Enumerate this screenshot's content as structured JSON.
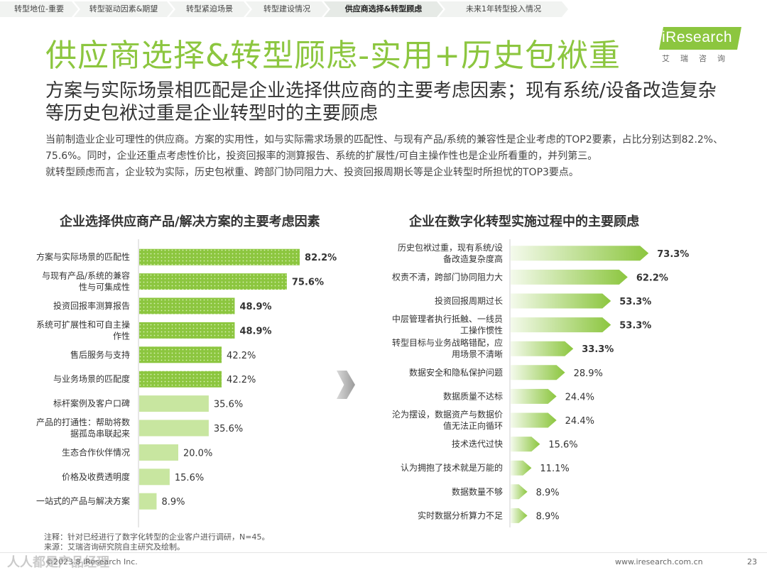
{
  "nav": {
    "items": [
      "转型地位-重要",
      "转型驱动因素&期望",
      "转型紧迫场景",
      "转型建设情况",
      "供应商选择&转型顾虑",
      "未来1年转型投入情况"
    ],
    "active_index": 4
  },
  "logo": {
    "text": "iResearch",
    "sub": "艾瑞咨询"
  },
  "title": "供应商选择&转型顾虑-实用+历史包袱重",
  "subtitle": "方案与实际场景相匹配是企业选择供应商的主要考虑因素；现有系统/设备改造复杂等历史包袱过重是企业转型时的主要顾虑",
  "description": [
    "当前制造业企业可理性的供应商。方案的实用性，如与实际需求场景的匹配性、与现有产品/系统的兼容性是企业考虑的TOP2要素，占比分别达到82.2%、75.6%。同时，企业还重点考虑性价比，投资回报率的测算报告、系统的扩展性/可自主操作性也是企业所看重的，并列第三。",
    "就转型顾虑而言，企业较为实际，历史包袱重、跨部门协同阻力大、投资回报周期长等是企业转型时所担忧的TOP3要点。"
  ],
  "colors": {
    "accent": "#8cc63f",
    "light": "#c8e6a0",
    "text": "#333333"
  },
  "chart_data": [
    {
      "type": "bar",
      "orientation": "horizontal",
      "title": "企业选择供应商产品/解决方案的主要考虑因素",
      "categories": [
        "方案与实际场景的匹配性",
        "与现有产品/系统的兼容性与可集成性",
        "投资回报率测算报告",
        "系统可扩展性和可自主操作性",
        "售后服务与支持",
        "与业务场景的匹配度",
        "标杆案例及客户口碑",
        "产品的打通性：帮助将数据孤岛串联起来",
        "生态合作伙伴情况",
        "价格及收费透明度",
        "一站式的产品与解决方案"
      ],
      "category_lines": [
        [
          "方案与实际场景的匹配性"
        ],
        [
          "与现有产品/系统的兼容",
          "性与可集成性"
        ],
        [
          "投资回报率测算报告"
        ],
        [
          "系统可扩展性和可自主操",
          "作性"
        ],
        [
          "售后服务与支持"
        ],
        [
          "与业务场景的匹配度"
        ],
        [
          "标杆案例及客户口碑"
        ],
        [
          "产品的打通性：帮助将数",
          "据孤岛串联起来"
        ],
        [
          "生态合作伙伴情况"
        ],
        [
          "价格及收费透明度"
        ],
        [
          "一站式的产品与解决方案"
        ]
      ],
      "values": [
        82.2,
        75.6,
        48.9,
        48.9,
        42.2,
        42.2,
        35.6,
        35.6,
        20.0,
        15.6,
        8.9
      ],
      "labels": [
        "82.2%",
        "75.6%",
        "48.9%",
        "48.9%",
        "42.2%",
        "42.2%",
        "35.6%",
        "35.6%",
        "20.0%",
        "15.6%",
        "8.9%"
      ],
      "unit": "%"
    },
    {
      "type": "bar",
      "orientation": "horizontal",
      "title": "企业在数字化转型实施过程中的主要顾虑",
      "categories": [
        "历史包袱过重，现有系统/设备改造复杂度高",
        "权责不清，跨部门协同阻力大",
        "投资回报周期过长",
        "中层管理者执行抵触、一线员工操作惯性",
        "转型目标与业务战略错配，应用场景不清晰",
        "数据安全和隐私保护问题",
        "数据质量不达标",
        "沦为摆设，数据资产与数据价值无法正向循环",
        "技术迭代过快",
        "认为拥抱了技术就是万能的",
        "数据数量不够",
        "实时数据分析算力不足"
      ],
      "category_lines": [
        [
          "历史包袱过重，现有系统/设",
          "备改造复杂度高"
        ],
        [
          "权责不清，跨部门协同阻力大"
        ],
        [
          "投资回报周期过长"
        ],
        [
          "中层管理者执行抵触、一线员",
          "工操作惯性"
        ],
        [
          "转型目标与业务战略错配，应",
          "用场景不清晰"
        ],
        [
          "数据安全和隐私保护问题"
        ],
        [
          "数据质量不达标"
        ],
        [
          "沦为摆设，数据资产与数据价",
          "值无法正向循环"
        ],
        [
          "技术迭代过快"
        ],
        [
          "认为拥抱了技术就是万能的"
        ],
        [
          "数据数量不够"
        ],
        [
          "实时数据分析算力不足"
        ]
      ],
      "values": [
        73.3,
        62.2,
        53.3,
        53.3,
        33.3,
        28.9,
        24.4,
        24.4,
        15.6,
        11.1,
        8.9,
        8.9
      ],
      "labels": [
        "73.3%",
        "62.2%",
        "53.3%",
        "53.3%",
        "33.3%",
        "28.9%",
        "24.4%",
        "24.4%",
        "15.6%",
        "11.1%",
        "8.9%",
        "8.9%"
      ],
      "unit": "%"
    }
  ],
  "note": "注释：针对已经进行了数字化转型的企业客户进行调研，N=45。",
  "source": "来源：艾瑞咨询研究院自主研究及绘制。",
  "footer": {
    "copyright": "©2023.8 iResearch Inc.",
    "url": "www.iresearch.com.cn",
    "page": "23"
  },
  "watermark": "人人都是产品经理"
}
